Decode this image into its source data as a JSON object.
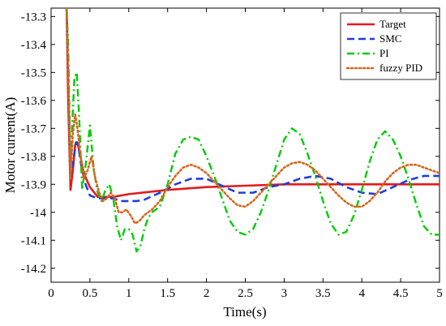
{
  "chart_data": {
    "type": "line",
    "title": "",
    "xlabel": "Time(s)",
    "ylabel": "Motor current(A)",
    "xlim": [
      0,
      5
    ],
    "ylim": [
      -14.25,
      -13.27
    ],
    "x_ticks": [
      0,
      0.5,
      1,
      1.5,
      2,
      2.5,
      3,
      3.5,
      4,
      4.5,
      5
    ],
    "x_tick_labels": [
      "0",
      "0.5",
      "1",
      "1.5",
      "2",
      "2.5",
      "3",
      "3.5",
      "4",
      "4.5",
      "5"
    ],
    "y_ticks": [
      -13.3,
      -13.4,
      -13.5,
      -13.6,
      -13.7,
      -13.8,
      -13.9,
      -14,
      -14.1,
      -14.2
    ],
    "y_tick_labels": [
      "-13.3",
      "-13.4",
      "-13.5",
      "-13.6",
      "-13.7",
      "-13.8",
      "-13.9",
      "-14",
      "-14.1",
      "-14.2"
    ],
    "grid": false,
    "legend_position": "top-right",
    "series": [
      {
        "name": "Target",
        "color": "#e31a1c",
        "dash": "solid",
        "x": [
          0.2,
          0.22,
          0.25,
          0.28,
          0.31,
          0.34,
          0.37,
          0.42,
          0.5,
          0.6,
          0.8,
          1.0,
          1.5,
          2.0,
          2.5,
          3.0,
          3.5,
          4.0,
          4.5,
          5.0
        ],
        "y": [
          -13.27,
          -13.6,
          -13.92,
          -13.85,
          -13.76,
          -13.75,
          -13.79,
          -13.86,
          -13.91,
          -13.945,
          -13.945,
          -13.935,
          -13.92,
          -13.91,
          -13.905,
          -13.9,
          -13.9,
          -13.9,
          -13.9,
          -13.9
        ]
      },
      {
        "name": "SMC",
        "color": "#1f3fd6",
        "dash": "dashed",
        "x": [
          0.2,
          0.22,
          0.25,
          0.28,
          0.32,
          0.35,
          0.38,
          0.43,
          0.5,
          0.6,
          0.7,
          0.8,
          0.9,
          1.0,
          1.1,
          1.2,
          1.4,
          1.6,
          1.8,
          2.0,
          2.2,
          2.4,
          2.6,
          2.8,
          3.0,
          3.2,
          3.4,
          3.6,
          3.8,
          4.0,
          4.2,
          4.4,
          4.6,
          4.8,
          5.0
        ],
        "y": [
          -13.27,
          -13.5,
          -13.88,
          -13.83,
          -13.75,
          -13.76,
          -13.82,
          -13.89,
          -13.94,
          -13.95,
          -13.95,
          -13.95,
          -13.96,
          -13.96,
          -13.96,
          -13.955,
          -13.93,
          -13.9,
          -13.88,
          -13.88,
          -13.905,
          -13.93,
          -13.93,
          -13.91,
          -13.9,
          -13.88,
          -13.87,
          -13.88,
          -13.91,
          -13.93,
          -13.935,
          -13.91,
          -13.885,
          -13.87,
          -13.87
        ]
      },
      {
        "name": "PI",
        "color": "#00cc00",
        "dash": "dashdot",
        "x": [
          0.2,
          0.22,
          0.25,
          0.27,
          0.3,
          0.33,
          0.36,
          0.4,
          0.45,
          0.5,
          0.55,
          0.6,
          0.65,
          0.7,
          0.75,
          0.8,
          0.85,
          0.9,
          0.95,
          1.0,
          1.05,
          1.1,
          1.15,
          1.2,
          1.25,
          1.3,
          1.4,
          1.5,
          1.6,
          1.7,
          1.8,
          1.9,
          2.0,
          2.1,
          2.2,
          2.3,
          2.4,
          2.5,
          2.6,
          2.7,
          2.8,
          2.9,
          3.0,
          3.1,
          3.2,
          3.3,
          3.4,
          3.5,
          3.6,
          3.7,
          3.8,
          3.9,
          4.0,
          4.1,
          4.2,
          4.3,
          4.4,
          4.5,
          4.6,
          4.7,
          4.8,
          4.9,
          5.0
        ],
        "y": [
          -13.27,
          -13.4,
          -13.85,
          -13.7,
          -13.52,
          -13.5,
          -13.65,
          -13.92,
          -13.82,
          -13.69,
          -13.85,
          -13.93,
          -13.96,
          -13.92,
          -13.9,
          -13.95,
          -14.05,
          -14.1,
          -14.06,
          -14.06,
          -14.08,
          -14.14,
          -14.12,
          -14.06,
          -14.02,
          -14.0,
          -13.98,
          -13.9,
          -13.79,
          -13.74,
          -13.73,
          -13.74,
          -13.8,
          -13.87,
          -13.95,
          -14.03,
          -14.07,
          -14.08,
          -14.06,
          -14.0,
          -13.92,
          -13.83,
          -13.74,
          -13.7,
          -13.72,
          -13.79,
          -13.87,
          -13.96,
          -14.04,
          -14.08,
          -14.07,
          -14.01,
          -13.92,
          -13.82,
          -13.74,
          -13.71,
          -13.74,
          -13.8,
          -13.88,
          -13.97,
          -14.05,
          -14.08,
          -14.08
        ]
      },
      {
        "name": "fuzzy PID",
        "color": "#d9661f",
        "dash": "dotted",
        "x": [
          0.2,
          0.22,
          0.25,
          0.28,
          0.31,
          0.34,
          0.37,
          0.42,
          0.47,
          0.52,
          0.57,
          0.62,
          0.67,
          0.72,
          0.77,
          0.82,
          0.87,
          0.92,
          0.97,
          1.02,
          1.08,
          1.14,
          1.2,
          1.3,
          1.4,
          1.5,
          1.6,
          1.7,
          1.8,
          1.9,
          2.0,
          2.1,
          2.2,
          2.3,
          2.4,
          2.5,
          2.6,
          2.7,
          2.8,
          2.9,
          3.0,
          3.1,
          3.2,
          3.3,
          3.4,
          3.5,
          3.6,
          3.7,
          3.8,
          3.9,
          4.0,
          4.1,
          4.2,
          4.3,
          4.4,
          4.5,
          4.6,
          4.7,
          4.8,
          4.9,
          5.0
        ],
        "y": [
          -13.27,
          -13.5,
          -13.88,
          -13.72,
          -13.65,
          -13.7,
          -13.78,
          -13.88,
          -13.85,
          -13.8,
          -13.88,
          -13.93,
          -13.96,
          -13.95,
          -13.93,
          -13.95,
          -14.0,
          -14.0,
          -13.99,
          -14.01,
          -14.04,
          -14.03,
          -14.01,
          -13.99,
          -13.96,
          -13.91,
          -13.87,
          -13.84,
          -13.83,
          -13.84,
          -13.86,
          -13.89,
          -13.92,
          -13.95,
          -13.975,
          -13.98,
          -13.96,
          -13.93,
          -13.9,
          -13.87,
          -13.84,
          -13.825,
          -13.82,
          -13.83,
          -13.85,
          -13.88,
          -13.91,
          -13.94,
          -13.965,
          -13.98,
          -13.98,
          -13.96,
          -13.93,
          -13.89,
          -13.86,
          -13.84,
          -13.83,
          -13.83,
          -13.84,
          -13.85,
          -13.86
        ]
      }
    ]
  }
}
